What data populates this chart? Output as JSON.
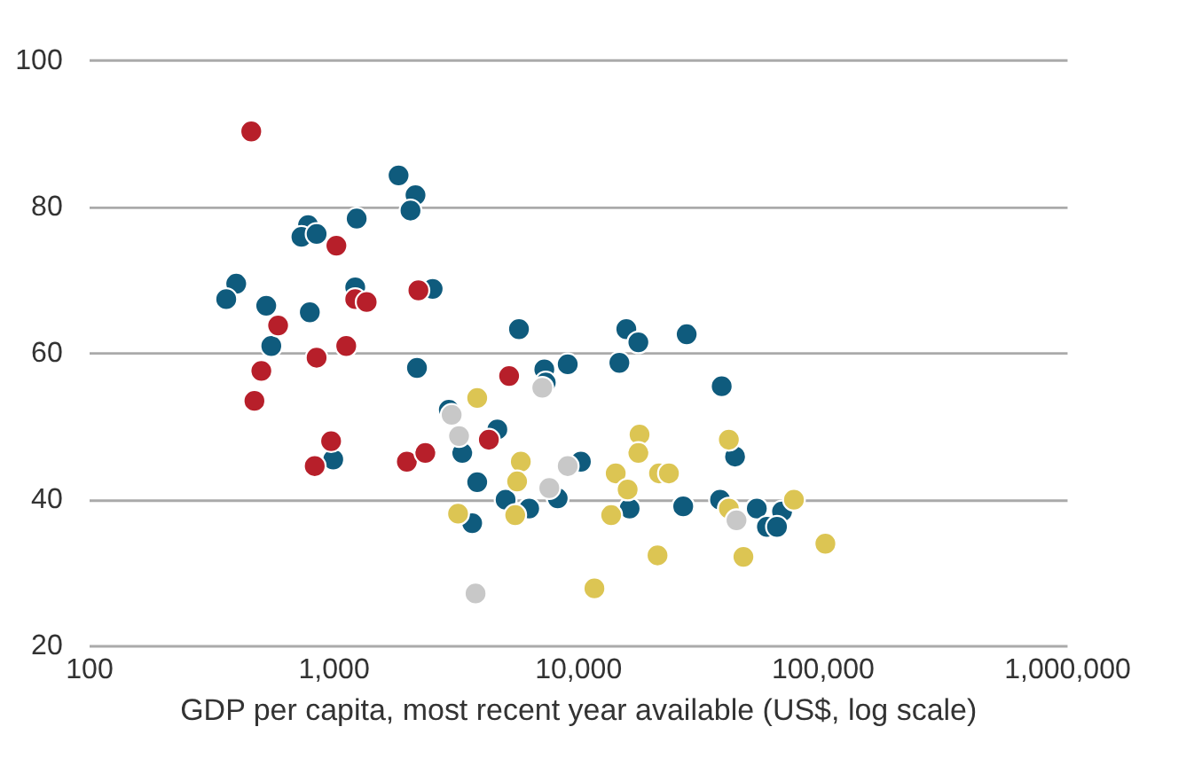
{
  "chart_data": {
    "type": "scatter",
    "xlabel": "GDP per capita, most recent year available (US$, log scale)",
    "log": "x",
    "xlim": [
      100,
      1000000
    ],
    "xticks": [
      100,
      {
        "value": 1000,
        "label": "1,000"
      },
      {
        "value": 10000,
        "label": "10,000"
      },
      {
        "value": 100000,
        "label": "100,000"
      },
      {
        "value": 1000000,
        "label": "1,000,000"
      }
    ],
    "ylim": [
      20,
      100
    ],
    "yticks": [
      20,
      40,
      60,
      80,
      100
    ],
    "grid": "y",
    "marker": "circle",
    "legend": false,
    "series": [
      {
        "color": "#0f5b7d",
        "x": [
          401,
          365,
          532,
          558,
          802,
          789,
          741,
          855,
          1247,
          1850,
          2170,
          2070,
          1230,
          2550,
          2200,
          1000,
          3880,
          5070,
          6330,
          8280,
          3700,
          10300,
          16300,
          27000,
          38200,
          44000,
          38800,
          27900,
          15800,
          17700,
          14800,
          9100,
          7300,
          7400,
          5750,
          4690,
          2970,
          3370,
          54000,
          68500,
          59400,
          65300
        ],
        "values": [
          69.4,
          67.3,
          66.4,
          60.9,
          65.5,
          77.4,
          75.8,
          76.2,
          78.3,
          84.2,
          81.5,
          79.4,
          68.9,
          68.7,
          57.9,
          45.4,
          42.3,
          39.9,
          38.7,
          40.1,
          36.7,
          45.1,
          38.7,
          39.0,
          39.9,
          45.8,
          55.4,
          62.5,
          63.2,
          61.4,
          58.6,
          58.4,
          57.7,
          55.9,
          63.2,
          49.5,
          52.2,
          46.3,
          38.7,
          38.3,
          36.2,
          36.2
        ]
      },
      {
        "color": "#b71f2a",
        "x": [
          462,
          1030,
          1230,
          1370,
          2230,
          595,
          1130,
          855,
          508,
          476,
          980,
          840,
          2000,
          2380,
          4330,
          5240
        ],
        "values": [
          90.2,
          74.6,
          67.3,
          66.9,
          68.5,
          63.7,
          60.9,
          59.3,
          57.5,
          53.4,
          47.9,
          44.5,
          45.1,
          46.3,
          48.1,
          56.8
        ]
      },
      {
        "color": "#dcc553",
        "x": [
          3880,
          5850,
          5650,
          5550,
          3240,
          11700,
          17900,
          17700,
          14300,
          16000,
          13700,
          21500,
          23600,
          21200,
          41500,
          47600,
          41500,
          76600,
          103000
        ],
        "values": [
          53.8,
          45.1,
          42.4,
          37.8,
          38.0,
          27.8,
          48.8,
          46.3,
          43.5,
          41.3,
          37.8,
          43.5,
          43.5,
          32.3,
          48.1,
          32.1,
          38.7,
          39.9,
          33.9
        ]
      },
      {
        "color": "#c8c8c8",
        "x": [
          3050,
          3270,
          7160,
          9100,
          7650,
          3820,
          44600
        ],
        "values": [
          51.5,
          48.6,
          55.2,
          44.5,
          41.5,
          27.1,
          37.1
        ]
      }
    ]
  }
}
